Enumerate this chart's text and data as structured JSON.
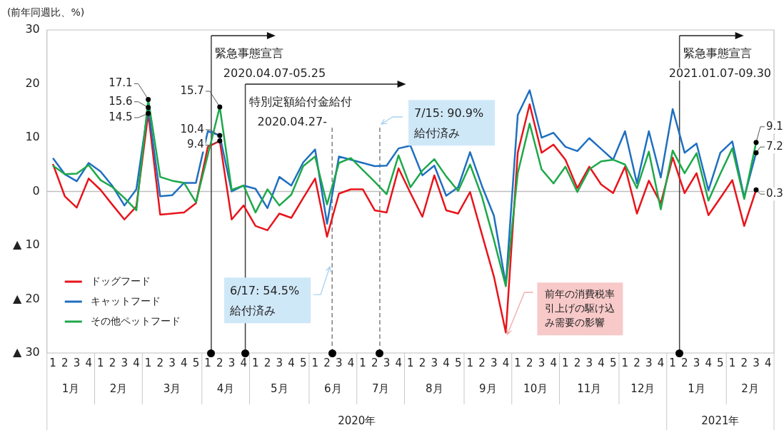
{
  "chart_data": {
    "type": "line",
    "ylabel": "(前年同週比、%)",
    "x": [
      "2020-01-05",
      "2020-01-12",
      "2020-01-19",
      "2020-01-26",
      "2020-02-02",
      "2020-02-09",
      "2020-02-16",
      "2020-02-23",
      "2020-03-01",
      "2020-03-08",
      "2020-03-15",
      "2020-03-22",
      "2020-03-29",
      "2020-04-05",
      "2020-04-12",
      "2020-04-19",
      "2020-04-26",
      "2020-05-03",
      "2020-05-10",
      "2020-05-17",
      "2020-05-24",
      "2020-05-31",
      "2020-06-07",
      "2020-06-14",
      "2020-06-21",
      "2020-06-28",
      "2020-07-05",
      "2020-07-12",
      "2020-07-19",
      "2020-07-26",
      "2020-08-02",
      "2020-08-09",
      "2020-08-16",
      "2020-08-23",
      "2020-08-30",
      "2020-09-06",
      "2020-09-13",
      "2020-09-20",
      "2020-09-27",
      "2020-10-04",
      "2020-10-11",
      "2020-10-18",
      "2020-10-25",
      "2020-11-01",
      "2020-11-08",
      "2020-11-15",
      "2020-11-22",
      "2020-11-29",
      "2020-12-06",
      "2020-12-13",
      "2020-12-20",
      "2020-12-27",
      "2021-01-03",
      "2021-01-10",
      "2021-01-17",
      "2021-01-24",
      "2021-01-31",
      "2021-02-07",
      "2021-02-14",
      "2021-02-21"
    ],
    "series": [
      {
        "name": "ドッグフード",
        "color": "#e8141b",
        "values": [
          5.1,
          -0.9,
          -3.0,
          2.4,
          0.3,
          -2.5,
          -5.2,
          -2.8,
          14.5,
          -4.3,
          -4.1,
          -3.9,
          -2.2,
          8.3,
          9.4,
          -5.2,
          -2.6,
          -6.4,
          -7.2,
          -4.1,
          -4.9,
          -1.2,
          2.4,
          -8.4,
          -0.4,
          0.4,
          0.4,
          -3.5,
          -3.9,
          4.3,
          -0.3,
          -4.7,
          3.0,
          -3.5,
          -4.1,
          -0.1,
          -8.0,
          -15.8,
          -26.2,
          7.2,
          16.2,
          7.2,
          8.7,
          5.9,
          0.6,
          4.6,
          1.3,
          -0.3,
          4.6,
          -4.1,
          2.0,
          -2.2,
          6.3,
          -0.3,
          3.4,
          -4.4,
          -1.2,
          2.1,
          -6.4,
          0.3
        ],
        "value_labels": [
          null,
          null,
          null,
          null,
          null,
          null,
          null,
          null,
          "14.5",
          null,
          null,
          null,
          null,
          null,
          "9.4",
          null,
          null,
          null,
          null,
          null,
          null,
          null,
          null,
          null,
          null,
          null,
          null,
          null,
          null,
          null,
          null,
          null,
          null,
          null,
          null,
          null,
          null,
          null,
          null,
          null,
          null,
          null,
          null,
          null,
          null,
          null,
          null,
          null,
          null,
          null,
          null,
          null,
          null,
          null,
          null,
          null,
          null,
          null,
          null,
          "0.3"
        ]
      },
      {
        "name": "キャットフード",
        "color": "#1f6fc0",
        "values": [
          6.2,
          3.2,
          1.9,
          5.3,
          3.7,
          1.0,
          -2.6,
          0.4,
          15.6,
          -0.9,
          -0.7,
          1.6,
          1.6,
          11.2,
          10.4,
          0.0,
          1.1,
          0.5,
          -3.1,
          2.7,
          1.1,
          5.4,
          7.8,
          -6.0,
          6.5,
          5.9,
          5.3,
          4.7,
          4.8,
          8.0,
          8.5,
          3.0,
          4.8,
          -0.8,
          0.8,
          7.3,
          1.0,
          -4.5,
          -17.3,
          14.2,
          18.8,
          10.0,
          10.9,
          8.3,
          7.5,
          9.9,
          7.9,
          5.9,
          11.2,
          1.5,
          11.2,
          2.6,
          15.3,
          7.2,
          8.9,
          0.2,
          7.2,
          9.3,
          -1.1,
          7.2
        ],
        "value_labels": [
          null,
          null,
          null,
          null,
          null,
          null,
          null,
          null,
          "15.6",
          null,
          null,
          null,
          null,
          null,
          "10.4",
          null,
          null,
          null,
          null,
          null,
          null,
          null,
          null,
          null,
          null,
          null,
          null,
          null,
          null,
          null,
          null,
          null,
          null,
          null,
          null,
          null,
          null,
          null,
          null,
          null,
          null,
          null,
          null,
          null,
          null,
          null,
          null,
          null,
          null,
          null,
          null,
          null,
          null,
          null,
          null,
          null,
          null,
          null,
          null,
          "7.2"
        ]
      },
      {
        "name": "その他ペットフード",
        "color": "#1ea84a",
        "values": [
          4.8,
          3.2,
          3.3,
          4.9,
          2.1,
          0.8,
          -1.2,
          -3.5,
          17.1,
          2.7,
          2.0,
          1.6,
          -2.0,
          6.8,
          15.7,
          0.3,
          1.1,
          -3.9,
          0.4,
          -2.6,
          -0.6,
          4.7,
          6.5,
          -2.4,
          5.3,
          6.2,
          4.0,
          1.8,
          -0.5,
          6.7,
          0.8,
          3.9,
          6.0,
          2.8,
          0.1,
          5.0,
          -1.0,
          -9.0,
          -17.6,
          3.4,
          12.6,
          4.1,
          1.5,
          4.6,
          -0.1,
          4.1,
          5.6,
          5.9,
          5.0,
          0.6,
          7.4,
          -3.3,
          7.6,
          3.4,
          7.1,
          -1.7,
          3.3,
          8.0,
          -1.4,
          9.1
        ],
        "value_labels": [
          null,
          null,
          null,
          null,
          null,
          null,
          null,
          null,
          "17.1",
          null,
          null,
          null,
          null,
          null,
          "15.7",
          null,
          null,
          null,
          null,
          null,
          null,
          null,
          null,
          null,
          null,
          null,
          null,
          null,
          null,
          null,
          null,
          null,
          null,
          null,
          null,
          null,
          null,
          null,
          null,
          null,
          null,
          null,
          null,
          null,
          null,
          null,
          null,
          null,
          null,
          null,
          null,
          null,
          null,
          null,
          null,
          null,
          null,
          null,
          null,
          "9.1"
        ]
      }
    ],
    "xlim": [
      "2020-01-01T12:00",
      "2021-03-03T12:00"
    ],
    "xticks": [
      {
        "value": "2020-01-05",
        "label": "1"
      },
      {
        "value": "2020-01-12",
        "label": "2"
      },
      {
        "value": "2020-01-19",
        "label": "3"
      },
      {
        "value": "2020-01-26",
        "label": "4"
      },
      {
        "value": "2020-02-02",
        "label": "1"
      },
      {
        "value": "2020-02-09",
        "label": "2"
      },
      {
        "value": "2020-02-16",
        "label": "3"
      },
      {
        "value": "2020-02-23",
        "label": "4"
      },
      {
        "value": "2020-03-01",
        "label": "1"
      },
      {
        "value": "2020-03-08",
        "label": "2"
      },
      {
        "value": "2020-03-15",
        "label": "3"
      },
      {
        "value": "2020-03-22",
        "label": "4"
      },
      {
        "value": "2020-03-29",
        "label": "5"
      },
      {
        "value": "2020-04-05",
        "label": "1"
      },
      {
        "value": "2020-04-12",
        "label": "2"
      },
      {
        "value": "2020-04-19",
        "label": "3"
      },
      {
        "value": "2020-04-26",
        "label": "4"
      },
      {
        "value": "2020-05-03",
        "label": "1"
      },
      {
        "value": "2020-05-10",
        "label": "2"
      },
      {
        "value": "2020-05-17",
        "label": "3"
      },
      {
        "value": "2020-05-24",
        "label": "4"
      },
      {
        "value": "2020-05-31",
        "label": "5"
      },
      {
        "value": "2020-06-07",
        "label": "1"
      },
      {
        "value": "2020-06-14",
        "label": "2"
      },
      {
        "value": "2020-06-21",
        "label": "3"
      },
      {
        "value": "2020-06-28",
        "label": "4"
      },
      {
        "value": "2020-07-05",
        "label": "1"
      },
      {
        "value": "2020-07-12",
        "label": "2"
      },
      {
        "value": "2020-07-19",
        "label": "3"
      },
      {
        "value": "2020-07-26",
        "label": "4"
      },
      {
        "value": "2020-08-02",
        "label": "1"
      },
      {
        "value": "2020-08-09",
        "label": "2"
      },
      {
        "value": "2020-08-16",
        "label": "3"
      },
      {
        "value": "2020-08-23",
        "label": "4"
      },
      {
        "value": "2020-08-30",
        "label": "5"
      },
      {
        "value": "2020-09-06",
        "label": "1"
      },
      {
        "value": "2020-09-13",
        "label": "2"
      },
      {
        "value": "2020-09-20",
        "label": "3"
      },
      {
        "value": "2020-09-27",
        "label": "4"
      },
      {
        "value": "2020-10-04",
        "label": "1"
      },
      {
        "value": "2020-10-11",
        "label": "2"
      },
      {
        "value": "2020-10-18",
        "label": "3"
      },
      {
        "value": "2020-10-25",
        "label": "4"
      },
      {
        "value": "2020-11-01",
        "label": "1"
      },
      {
        "value": "2020-11-08",
        "label": "2"
      },
      {
        "value": "2020-11-15",
        "label": "3"
      },
      {
        "value": "2020-11-22",
        "label": "4"
      },
      {
        "value": "2020-11-29",
        "label": "5"
      },
      {
        "value": "2020-12-06",
        "label": "1"
      },
      {
        "value": "2020-12-13",
        "label": "2"
      },
      {
        "value": "2020-12-20",
        "label": "3"
      },
      {
        "value": "2020-12-27",
        "label": "4"
      },
      {
        "value": "2021-01-03",
        "label": "1"
      },
      {
        "value": "2021-01-10",
        "label": "2"
      },
      {
        "value": "2021-01-17",
        "label": "3"
      },
      {
        "value": "2021-01-24",
        "label": "4"
      },
      {
        "value": "2021-01-31",
        "label": "5"
      },
      {
        "value": "2021-02-07",
        "label": "1"
      },
      {
        "value": "2021-02-14",
        "label": "2"
      },
      {
        "value": "2021-02-21",
        "label": "3"
      },
      {
        "value": "2021-02-28",
        "label": "4"
      }
    ],
    "x2lim": [
      "2020-01-01T12:00",
      "2021-03-03T12:00"
    ],
    "x2ticks": [
      {
        "value": "2020-01-15T12:00",
        "label": "1月"
      },
      {
        "value": "2020-02-12T12:00",
        "label": "2月"
      },
      {
        "value": "2020-03-15",
        "label": "3月"
      },
      {
        "value": "2020-04-15T12:00",
        "label": "4月"
      },
      {
        "value": "2020-05-17",
        "label": "5月"
      },
      {
        "value": "2020-06-17T12:00",
        "label": "6月"
      },
      {
        "value": "2020-07-15T12:00",
        "label": "7月"
      },
      {
        "value": "2020-08-16",
        "label": "8月"
      },
      {
        "value": "2020-09-16T12:00",
        "label": "9月"
      },
      {
        "value": "2020-10-14T12:00",
        "label": "10月"
      },
      {
        "value": "2020-11-15",
        "label": "11月"
      },
      {
        "value": "2020-12-16T12:00",
        "label": "12月"
      },
      {
        "value": "2021-01-17",
        "label": "1月"
      },
      {
        "value": "2021-02-17T12:00",
        "label": "2月"
      }
    ],
    "ylim": [
      -30,
      30
    ],
    "yticks": [
      {
        "value": -30,
        "label": "▲ 30"
      },
      {
        "value": -20,
        "label": "▲ 20"
      },
      {
        "value": -10,
        "label": "▲ 10"
      },
      0,
      10,
      20,
      30
    ],
    "ref_lines": [
      {
        "axis": "y",
        "value": 0,
        "color": "#bfbfbf",
        "line_style": "solid"
      },
      {
        "axis": "x",
        "value": "2020-04-07",
        "label": "緊急事態宣言\n2020.04.07-05.25",
        "color": "#404040",
        "line_style": "solid"
      },
      {
        "axis": "x",
        "value": "2020-04-27",
        "label": "特別定額給付金給付\n2020.04.27-",
        "color": "#404040",
        "line_style": "solid"
      },
      {
        "axis": "x",
        "value": "2020-06-17",
        "label": "6/17: 54.5%\n給付済み",
        "color": "#7f7f7f",
        "line_style": "dashed"
      },
      {
        "axis": "x",
        "value": "2020-07-15",
        "label": "7/15: 90.9%\n給付済み",
        "color": "#7f7f7f",
        "line_style": "dashed"
      },
      {
        "axis": "x",
        "value": "2021-01-07",
        "label": "緊急事態宣言\n2021.01.07-09.30",
        "color": "#404040",
        "line_style": "solid"
      }
    ],
    "annotations": [
      {
        "text": "前年の消費税率引上げの駆け込み需要の影響",
        "x": "2020-09-27",
        "y": -26.2
      },
      "2020年",
      "2021年"
    ],
    "legend": "bottom left",
    "grid": false,
    "marker": "none",
    "line_style": "solid"
  }
}
